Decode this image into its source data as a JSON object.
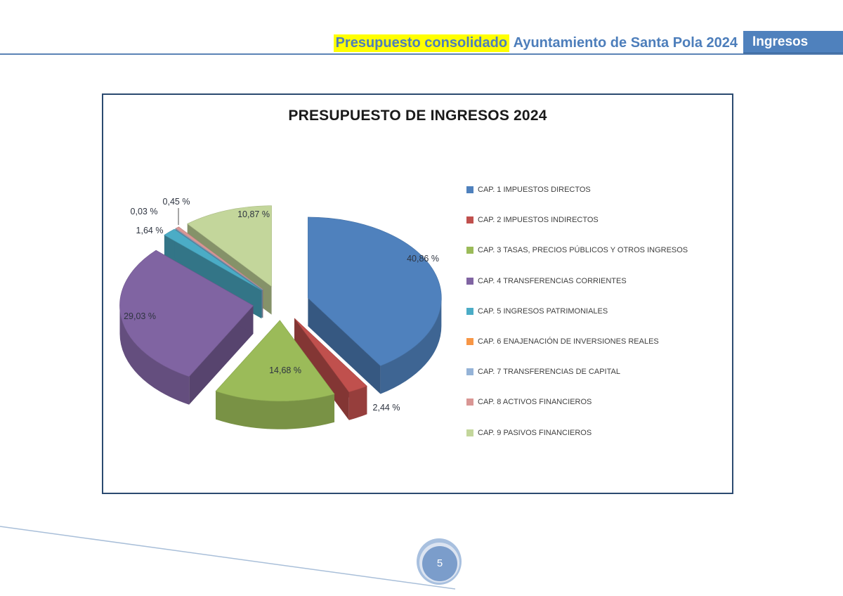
{
  "header": {
    "highlighted_text": "Presupuesto consolidado",
    "title_text": "Ayuntamiento de Santa Pola 2024",
    "tab_label": "Ingresos",
    "accent_color": "#4f81bd",
    "highlight_color": "#ffff00"
  },
  "footer": {
    "page_number": "5"
  },
  "chart_data": {
    "type": "pie",
    "style": "3d-exploded",
    "title": "PRESUPUESTO DE INGRESOS 2024",
    "legend_position": "right",
    "unit": "%",
    "slices": [
      {
        "label": "CAP. 1 IMPUESTOS DIRECTOS",
        "value": 40.86,
        "display": "40,86 %",
        "color": "#4f81bd"
      },
      {
        "label": "CAP. 2 IMPUESTOS INDIRECTOS",
        "value": 2.44,
        "display": "2,44 %",
        "color": "#c0504d"
      },
      {
        "label": "CAP. 3 TASAS, PRECIOS PÚBLICOS Y OTROS INGRESOS",
        "value": 14.68,
        "display": "14,68 %",
        "color": "#9bbb59"
      },
      {
        "label": "CAP. 4 TRANSFERENCIAS CORRIENTES",
        "value": 29.03,
        "display": "29,03 %",
        "color": "#8064a2"
      },
      {
        "label": "CAP. 5 INGRESOS PATRIMONIALES",
        "value": 1.64,
        "display": "1,64 %",
        "color": "#4bacc6"
      },
      {
        "label": "CAP. 6 ENAJENACIÓN DE INVERSIONES REALES",
        "value": 0.0,
        "display": "",
        "color": "#f79646"
      },
      {
        "label": "CAP. 7 TRANSFERENCIAS DE CAPITAL",
        "value": 0.03,
        "display": "0,03 %",
        "color": "#95b3d7"
      },
      {
        "label": "CAP. 8 ACTIVOS FINANCIEROS",
        "value": 0.45,
        "display": "0,45 %",
        "color": "#d99694"
      },
      {
        "label": "CAP. 9 PASIVOS FINANCIEROS",
        "value": 10.87,
        "display": "10,87 %",
        "color": "#c3d69b"
      }
    ]
  }
}
